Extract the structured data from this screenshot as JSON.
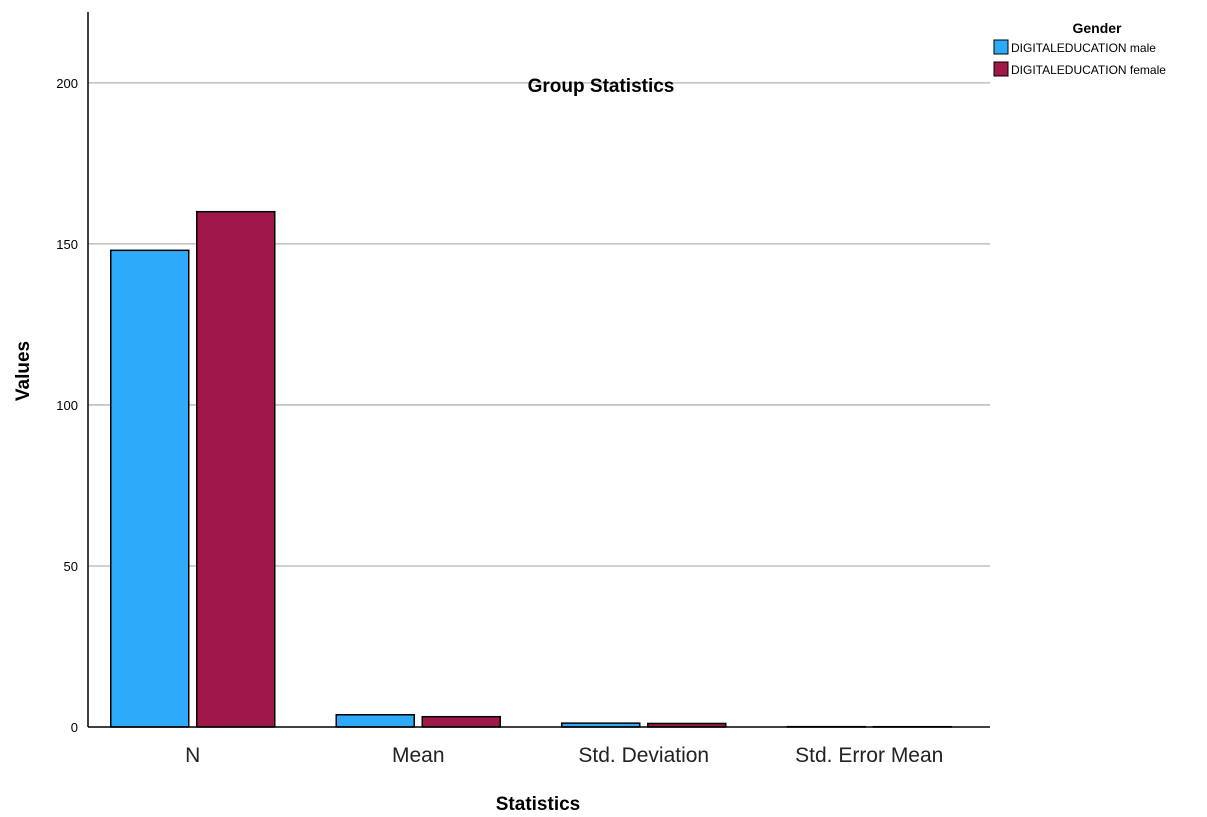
{
  "chart_data": {
    "type": "bar",
    "title": "Group Statistics",
    "xlabel": "Statistics",
    "ylabel": "Values",
    "categories": [
      "N",
      "Mean",
      "Std. Deviation",
      "Std. Error Mean"
    ],
    "series": [
      {
        "name": "DIGITALEDUCATION male",
        "color": "#2EAAFB",
        "values": [
          148,
          3.8,
          1.2,
          0.1
        ]
      },
      {
        "name": "DIGITALEDUCATION female",
        "color": "#A0174A",
        "values": [
          160,
          3.2,
          1.1,
          0.09
        ]
      }
    ],
    "ylim": [
      0,
      222
    ],
    "yticks": [
      0,
      50,
      100,
      150,
      200
    ],
    "grid": true,
    "legend": {
      "title": "Gender",
      "position": "top-right"
    }
  }
}
